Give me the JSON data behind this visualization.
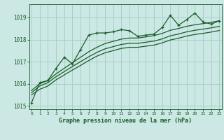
{
  "title": "Graphe pression niveau de la mer (hPa)",
  "bg_color": "#cce8e4",
  "line_color": "#1a5c2a",
  "grid_color": "#a8cfc8",
  "x": [
    0,
    1,
    2,
    3,
    4,
    5,
    6,
    7,
    8,
    9,
    10,
    11,
    12,
    13,
    14,
    15,
    16,
    17,
    18,
    19,
    20,
    21,
    22,
    23
  ],
  "line_jagged": [
    1015.15,
    1016.05,
    1016.15,
    1016.7,
    1017.2,
    1016.9,
    1017.55,
    1018.2,
    1018.3,
    1018.3,
    1018.35,
    1018.45,
    1018.4,
    1018.15,
    1018.2,
    1018.25,
    1018.55,
    1019.1,
    1018.65,
    1018.9,
    1019.2,
    1018.8,
    1018.7,
    1018.85
  ],
  "line_top": [
    1015.7,
    1016.0,
    1016.15,
    1016.45,
    1016.7,
    1016.95,
    1017.2,
    1017.45,
    1017.65,
    1017.82,
    1017.92,
    1018.02,
    1018.07,
    1018.07,
    1018.12,
    1018.18,
    1018.28,
    1018.42,
    1018.5,
    1018.6,
    1018.67,
    1018.72,
    1018.78,
    1018.85
  ],
  "line_mid": [
    1015.6,
    1015.9,
    1016.05,
    1016.32,
    1016.55,
    1016.78,
    1017.0,
    1017.22,
    1017.42,
    1017.58,
    1017.68,
    1017.78,
    1017.83,
    1017.83,
    1017.88,
    1017.93,
    1018.03,
    1018.17,
    1018.25,
    1018.35,
    1018.42,
    1018.47,
    1018.53,
    1018.6
  ],
  "line_bot": [
    1015.5,
    1015.75,
    1015.9,
    1016.18,
    1016.4,
    1016.62,
    1016.83,
    1017.05,
    1017.25,
    1017.4,
    1017.5,
    1017.6,
    1017.65,
    1017.65,
    1017.7,
    1017.75,
    1017.85,
    1017.98,
    1018.06,
    1018.16,
    1018.23,
    1018.28,
    1018.34,
    1018.41
  ],
  "ylim": [
    1014.85,
    1019.6
  ],
  "yticks": [
    1015,
    1016,
    1017,
    1018,
    1019
  ],
  "xticks": [
    0,
    1,
    2,
    3,
    4,
    5,
    6,
    7,
    8,
    9,
    10,
    11,
    12,
    13,
    14,
    15,
    16,
    17,
    18,
    19,
    20,
    21,
    22,
    23
  ],
  "xlim": [
    -0.3,
    23.3
  ]
}
